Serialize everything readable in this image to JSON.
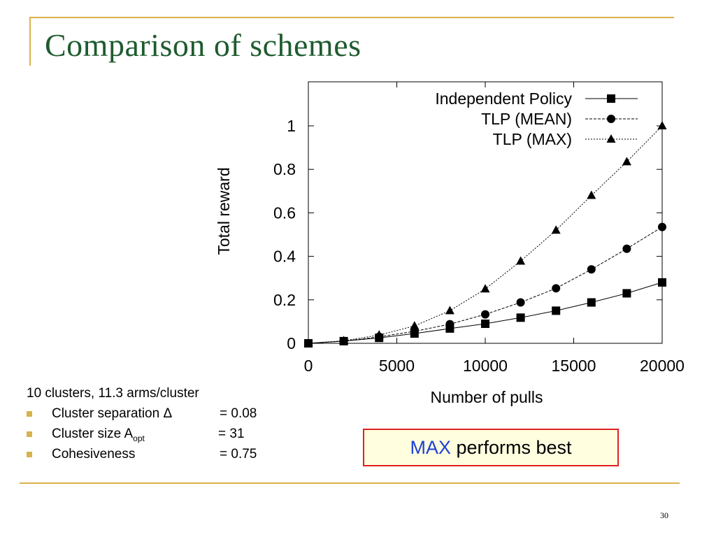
{
  "slide": {
    "title": "Comparison of schemes",
    "page_number": "30"
  },
  "info": {
    "heading": "10 clusters, 11.3 arms/cluster",
    "items": [
      {
        "label": "Cluster separation Δ",
        "value": "= 0.08"
      },
      {
        "label": "Cluster size A",
        "sub": "opt",
        "value": "= 31"
      },
      {
        "label": "Cohesiveness",
        "value": "= 0.75"
      }
    ]
  },
  "callout": {
    "highlight": "MAX",
    "rest": " performs best"
  },
  "colors": {
    "title": "#1e5b2e",
    "rules": "#d8b24a",
    "callout_border": "#e02020",
    "callout_fill": "#ffffe0",
    "callout_highlight": "#1f3fd8"
  },
  "chart_data": {
    "type": "line",
    "xlabel": "Number of pulls",
    "ylabel": "Total reward",
    "xlim": [
      0,
      20000
    ],
    "ylim": [
      0,
      1.0
    ],
    "xticks": [
      "0",
      "5000",
      "10000",
      "15000",
      "20000"
    ],
    "yticks": [
      "0",
      "0.2",
      "0.4",
      "0.6",
      "0.8",
      "1"
    ],
    "legend_position": "top-right",
    "grid": false,
    "series": [
      {
        "name": "Independent Policy",
        "marker": "square",
        "line": "solid",
        "x": [
          0,
          2000,
          4000,
          6000,
          8000,
          10000,
          12000,
          14000,
          16000,
          18000,
          20000
        ],
        "y": [
          0,
          0.01,
          0.025,
          0.045,
          0.068,
          0.09,
          0.118,
          0.15,
          0.188,
          0.23,
          0.28
        ]
      },
      {
        "name": "TLP (MEAN)",
        "marker": "circle",
        "line": "dashed",
        "x": [
          0,
          2000,
          4000,
          6000,
          8000,
          10000,
          12000,
          14000,
          16000,
          18000,
          20000
        ],
        "y": [
          0,
          0.01,
          0.03,
          0.055,
          0.088,
          0.133,
          0.188,
          0.253,
          0.34,
          0.435,
          0.535
        ]
      },
      {
        "name": "TLP (MAX)",
        "marker": "triangle",
        "line": "dotted",
        "x": [
          0,
          2000,
          4000,
          6000,
          8000,
          10000,
          12000,
          14000,
          16000,
          18000,
          20000
        ],
        "y": [
          0,
          0.012,
          0.038,
          0.08,
          0.15,
          0.25,
          0.378,
          0.52,
          0.68,
          0.835,
          1.0
        ]
      }
    ]
  }
}
